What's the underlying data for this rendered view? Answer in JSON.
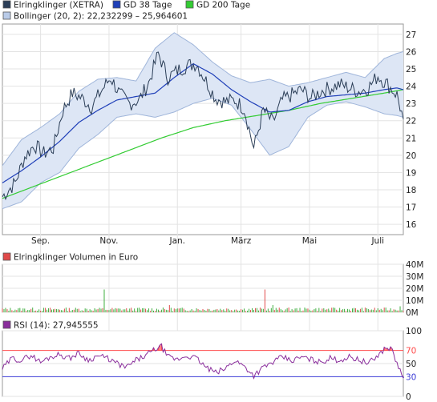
{
  "chart_data": [
    {
      "panel": "price",
      "type": "line",
      "legend": [
        {
          "label": "Elringklinger (XETRA)",
          "color": "#2b3e57"
        },
        {
          "label": "GD 38 Tage",
          "color": "#1f3fb8"
        },
        {
          "label": "GD 200 Tage",
          "color": "#33cc33"
        },
        {
          "label": "Bollinger (20, 2): 22,232299 – 25,964601",
          "color": "#b9cbe8"
        }
      ],
      "ylim": [
        15.4,
        27.6
      ],
      "y_ticks": [
        16,
        17,
        18,
        19,
        20,
        21,
        22,
        23,
        24,
        25,
        26,
        27
      ],
      "x_tick_labels": [
        "Sep.",
        "Nov.",
        "Jan.",
        "März",
        "Mai",
        "Juli"
      ],
      "x_tick_positions": [
        24,
        67,
        110,
        150,
        193,
        236
      ],
      "grid": true,
      "n_points": 253,
      "series": [
        {
          "name": "Elringklinger (XETRA)",
          "x": [
            0,
            8,
            14,
            20,
            26,
            32,
            38,
            44,
            50,
            56,
            62,
            68,
            74,
            80,
            86,
            92,
            98,
            104,
            110,
            116,
            122,
            128,
            134,
            140,
            146,
            152,
            158,
            164,
            170,
            176,
            182,
            188,
            194,
            200,
            206,
            212,
            218,
            224,
            230,
            236,
            242,
            248,
            252
          ],
          "values": [
            17.6,
            18.4,
            19.9,
            20.6,
            20.1,
            20.4,
            22.6,
            23.6,
            23.3,
            22.8,
            23.7,
            24.5,
            23.5,
            23.0,
            23.2,
            24.2,
            25.9,
            24.5,
            24.9,
            25.2,
            25.3,
            24.3,
            23.3,
            23.1,
            23.2,
            22.7,
            20.4,
            22.6,
            21.9,
            23.2,
            23.5,
            23.8,
            23.3,
            23.7,
            23.9,
            24.1,
            23.9,
            23.7,
            23.9,
            24.6,
            24.1,
            23.5,
            22.1
          ]
        },
        {
          "name": "GD 38 Tage",
          "x": [
            0,
            12,
            24,
            36,
            48,
            60,
            72,
            84,
            96,
            108,
            120,
            132,
            144,
            156,
            168,
            180,
            192,
            204,
            216,
            228,
            240,
            248,
            252
          ],
          "values": [
            18.4,
            19.1,
            19.9,
            20.8,
            21.9,
            22.6,
            23.2,
            23.4,
            23.6,
            24.5,
            25.3,
            24.7,
            23.8,
            23.1,
            22.5,
            22.6,
            23.1,
            23.4,
            23.5,
            23.6,
            23.8,
            23.9,
            23.8
          ]
        },
        {
          "name": "GD 200 Tage",
          "x": [
            0,
            20,
            40,
            60,
            80,
            100,
            120,
            140,
            160,
            180,
            200,
            220,
            240,
            252
          ],
          "values": [
            17.5,
            18.2,
            18.9,
            19.6,
            20.3,
            21.0,
            21.6,
            22.0,
            22.3,
            22.6,
            23.0,
            23.3,
            23.6,
            23.8
          ]
        },
        {
          "name": "Bollinger upper",
          "x": [
            0,
            12,
            24,
            36,
            48,
            60,
            72,
            84,
            96,
            108,
            120,
            132,
            144,
            156,
            168,
            180,
            192,
            204,
            216,
            228,
            240,
            248,
            252
          ],
          "values": [
            19.4,
            20.9,
            21.6,
            22.4,
            23.7,
            24.4,
            24.5,
            24.3,
            26.2,
            27.1,
            26.4,
            25.4,
            24.6,
            24.2,
            24.4,
            24.0,
            24.2,
            24.5,
            24.8,
            24.5,
            25.6,
            25.9,
            26.0
          ]
        },
        {
          "name": "Bollinger lower",
          "x": [
            0,
            12,
            24,
            36,
            48,
            60,
            72,
            84,
            96,
            108,
            120,
            132,
            144,
            156,
            168,
            180,
            192,
            204,
            216,
            228,
            240,
            248,
            252
          ],
          "values": [
            16.9,
            17.3,
            18.4,
            19.0,
            20.4,
            21.2,
            22.2,
            22.4,
            22.2,
            22.5,
            23.0,
            23.3,
            22.9,
            21.5,
            20.0,
            20.5,
            22.2,
            22.9,
            23.1,
            22.8,
            22.4,
            22.3,
            22.2
          ]
        }
      ]
    },
    {
      "panel": "volume",
      "type": "bar",
      "series_name": "Elringklinger Volumen in Euro",
      "legend_color": "#e04a4a",
      "ylim": [
        0,
        40
      ],
      "y_tick_labels": [
        "0M",
        "10M",
        "20M",
        "30M",
        "40M"
      ],
      "y_ticks": [
        0,
        10,
        20,
        30,
        40
      ],
      "spikes": [
        {
          "x": 64,
          "value": 19
        },
        {
          "x": 165,
          "value": 19
        },
        {
          "x": 105,
          "value": 6
        },
        {
          "x": 170,
          "value": 6
        },
        {
          "x": 250,
          "value": 5
        }
      ],
      "baseline_range": [
        1,
        4
      ],
      "n_points": 253
    },
    {
      "panel": "rsi",
      "type": "line",
      "series_name": "RSI (14): 27,945555",
      "legend_color": "#8a2e9c",
      "ylim": [
        0,
        100
      ],
      "y_ticks": [
        0,
        30,
        50,
        70,
        100
      ],
      "reference_lines": [
        70,
        30
      ],
      "overbought_color": "#ff4b4b",
      "oversold_color": "#3b3bd6",
      "x": [
        0,
        6,
        12,
        18,
        24,
        30,
        36,
        42,
        48,
        54,
        60,
        66,
        72,
        78,
        84,
        90,
        96,
        100,
        104,
        110,
        116,
        122,
        128,
        134,
        140,
        146,
        152,
        158,
        164,
        170,
        176,
        182,
        188,
        194,
        200,
        206,
        212,
        218,
        224,
        230,
        236,
        240,
        244,
        248,
        252
      ],
      "values": [
        42,
        58,
        55,
        63,
        52,
        60,
        64,
        58,
        66,
        55,
        62,
        58,
        50,
        44,
        55,
        62,
        72,
        76,
        60,
        56,
        62,
        58,
        44,
        36,
        42,
        55,
        46,
        32,
        44,
        52,
        60,
        54,
        60,
        56,
        52,
        58,
        55,
        60,
        56,
        50,
        62,
        72,
        75,
        50,
        28
      ]
    }
  ]
}
